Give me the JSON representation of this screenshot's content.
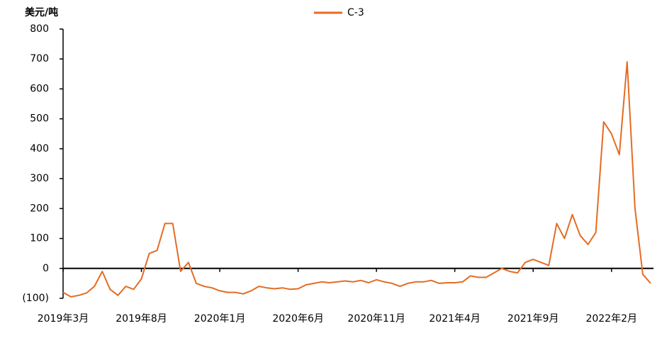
{
  "chart_data": {
    "type": "line",
    "y_label": "美元/吨",
    "categories": [
      "2019年3月",
      null,
      null,
      null,
      null,
      null,
      null,
      null,
      null,
      null,
      "2019年8月",
      null,
      null,
      null,
      null,
      null,
      null,
      null,
      null,
      null,
      "2020年1月",
      null,
      null,
      null,
      null,
      null,
      null,
      null,
      null,
      null,
      "2020年6月",
      null,
      null,
      null,
      null,
      null,
      null,
      null,
      null,
      null,
      "2020年11月",
      null,
      null,
      null,
      null,
      null,
      null,
      null,
      null,
      null,
      "2021年4月",
      null,
      null,
      null,
      null,
      null,
      null,
      null,
      null,
      null,
      "2021年9月",
      null,
      null,
      null,
      null,
      null,
      null,
      null,
      null,
      null,
      "2022年2月",
      null,
      null,
      null,
      null,
      null
    ],
    "series": [
      {
        "name": "C-3",
        "color": "#e46c23",
        "values": [
          -80,
          -95,
          -90,
          -82,
          -60,
          -10,
          -70,
          -90,
          -60,
          -70,
          -35,
          50,
          60,
          150,
          150,
          -10,
          20,
          -50,
          -60,
          -65,
          -75,
          -80,
          -80,
          -85,
          -75,
          -60,
          -65,
          -68,
          -65,
          -70,
          -68,
          -55,
          -50,
          -45,
          -48,
          -45,
          -42,
          -45,
          -40,
          -48,
          -38,
          -45,
          -50,
          -60,
          -50,
          -45,
          -45,
          -40,
          -50,
          -48,
          -48,
          -45,
          -25,
          -30,
          -30,
          -15,
          0,
          -10,
          -15,
          20,
          30,
          20,
          10,
          150,
          100,
          180,
          110,
          80,
          120,
          490,
          450,
          380,
          690,
          200,
          -20,
          -50
        ]
      }
    ],
    "ylim": [
      -100,
      800
    ],
    "yticks": [
      {
        "value": -100,
        "label": "(100)"
      },
      0,
      100,
      200,
      300,
      400,
      500,
      600,
      700,
      800
    ],
    "legend": "top"
  }
}
